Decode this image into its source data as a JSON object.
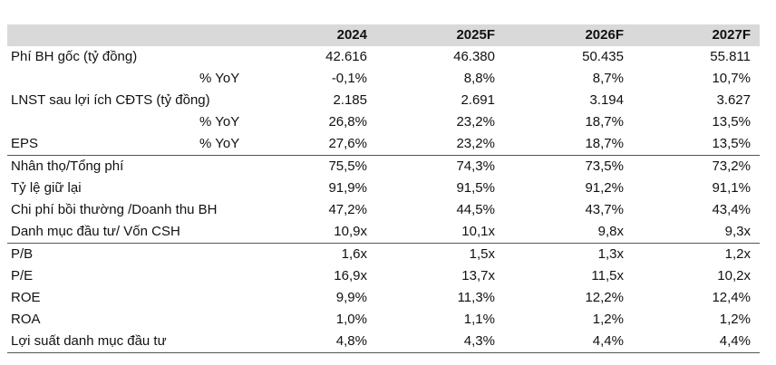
{
  "header": {
    "years": [
      "2024",
      "2025F",
      "2026F",
      "2027F"
    ]
  },
  "rows": [
    {
      "label": "Phí BH gốc (tỷ đồng)",
      "sub": "",
      "values": [
        "42.616",
        "46.380",
        "50.435",
        "55.811"
      ]
    },
    {
      "label": "",
      "sub": "% YoY",
      "values": [
        "-0,1%",
        "8,8%",
        "8,7%",
        "10,7%"
      ]
    },
    {
      "label": "LNST sau lợi ích CĐTS (tỷ đồng)",
      "sub": "",
      "values": [
        "2.185",
        "2.691",
        "3.194",
        "3.627"
      ]
    },
    {
      "label": "",
      "sub": "% YoY",
      "values": [
        "26,8%",
        "23,2%",
        "18,7%",
        "13,5%"
      ]
    },
    {
      "label": "EPS",
      "sub": "% YoY",
      "values": [
        "27,6%",
        "23,2%",
        "18,7%",
        "13,5%"
      ]
    },
    {
      "label": "Nhân thọ/Tổng phí",
      "sub": "",
      "values": [
        "75,5%",
        "74,3%",
        "73,5%",
        "73,2%"
      ]
    },
    {
      "label": "Tỷ lệ giữ lại",
      "sub": "",
      "values": [
        "91,9%",
        "91,5%",
        "91,2%",
        "91,1%"
      ]
    },
    {
      "label": "Chi phí bồi thường /Doanh thu BH",
      "sub": "",
      "values": [
        "47,2%",
        "44,5%",
        "43,7%",
        "43,4%"
      ]
    },
    {
      "label": "Danh mục đầu tư/ Vốn CSH",
      "sub": "",
      "values": [
        "10,9x",
        "10,1x",
        "9,8x",
        "9,3x"
      ]
    },
    {
      "label": "P/B",
      "sub": "",
      "values": [
        "1,6x",
        "1,5x",
        "1,3x",
        "1,2x"
      ]
    },
    {
      "label": "P/E",
      "sub": "",
      "values": [
        "16,9x",
        "13,7x",
        "11,5x",
        "10,2x"
      ]
    },
    {
      "label": "ROE",
      "sub": "",
      "values": [
        "9,9%",
        "11,3%",
        "12,2%",
        "12,4%"
      ]
    },
    {
      "label": "ROA",
      "sub": "",
      "values": [
        "1,0%",
        "1,1%",
        "1,2%",
        "1,2%"
      ]
    },
    {
      "label": "Lợi suất danh mục đầu tư",
      "sub": "",
      "values": [
        "4,8%",
        "4,3%",
        "4,4%",
        "4,4%"
      ]
    }
  ]
}
